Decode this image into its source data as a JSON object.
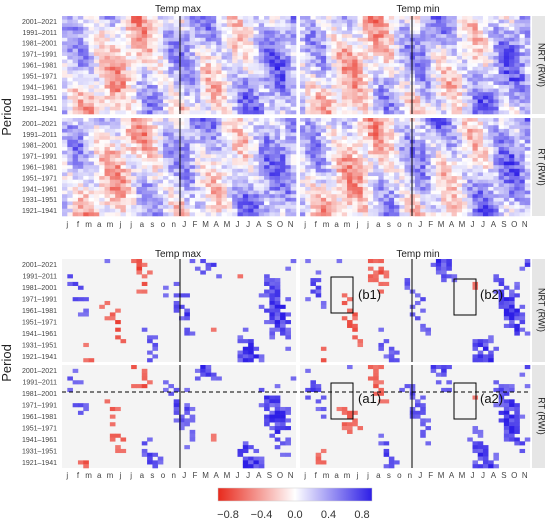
{
  "chart_data": {
    "type": "heatmap",
    "title": "",
    "ylabel": "Period",
    "column_titles": [
      "Temp max",
      "Temp min"
    ],
    "row_titles": [
      "NRT (RWI)",
      "RT (RWI)"
    ],
    "y_categories": [
      "2001–2021",
      "1991–2011",
      "1981–2001",
      "1971–1991",
      "1961–1981",
      "1951–1971",
      "1941–1961",
      "1931–1951",
      "1921–1941"
    ],
    "x_categories": [
      "j",
      "f",
      "m",
      "a",
      "m",
      "j",
      "j",
      "a",
      "s",
      "o",
      "n",
      "J",
      "F",
      "M",
      "A",
      "M",
      "J",
      "J",
      "A",
      "S",
      "O",
      "N"
    ],
    "colorbar": {
      "ticks": [
        "−0.8",
        "−0.4",
        "0.0",
        "0.4",
        "0.8"
      ],
      "range": [
        -0.8,
        0.8
      ],
      "low_color": "#e8291c",
      "mid_color": "#ffffff",
      "high_color": "#2d1ee6"
    },
    "grid": true,
    "annotations": [
      "(b1)",
      "(b2)",
      "(a1)",
      "(a2)"
    ],
    "panels_note_values": "correlation fields; top block = all correlations, bottom block = significant correlations only"
  },
  "colors": {
    "panel_bg": "#f2f2f2",
    "strip_bg": "#e6e6e6",
    "divider": "#000000"
  }
}
